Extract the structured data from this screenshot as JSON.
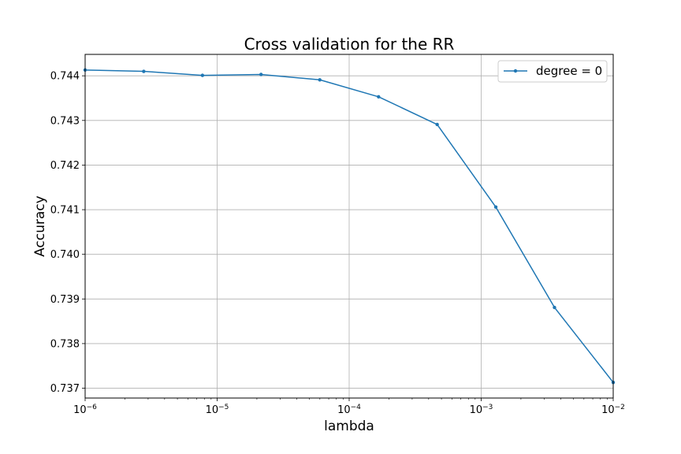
{
  "chart_data": {
    "type": "line",
    "title": "Cross validation for the RR",
    "xlabel": "lambda",
    "ylabel": "Accuracy",
    "xscale": "log",
    "xlim": [
      1e-06,
      0.01
    ],
    "ylim": [
      0.73678,
      0.74448
    ],
    "grid": true,
    "legend_position": "top-right",
    "x_ticks": [
      {
        "value": 1e-06,
        "base": "10",
        "exp": "−6"
      },
      {
        "value": 1e-05,
        "base": "10",
        "exp": "−5"
      },
      {
        "value": 0.0001,
        "base": "10",
        "exp": "−4"
      },
      {
        "value": 0.001,
        "base": "10",
        "exp": "−3"
      },
      {
        "value": 0.01,
        "base": "10",
        "exp": "−2"
      }
    ],
    "y_ticks": [
      {
        "value": 0.737,
        "label": "0.737"
      },
      {
        "value": 0.738,
        "label": "0.738"
      },
      {
        "value": 0.739,
        "label": "0.739"
      },
      {
        "value": 0.74,
        "label": "0.740"
      },
      {
        "value": 0.741,
        "label": "0.741"
      },
      {
        "value": 0.742,
        "label": "0.742"
      },
      {
        "value": 0.743,
        "label": "0.743"
      },
      {
        "value": 0.744,
        "label": "0.744"
      }
    ],
    "series": [
      {
        "name": "degree = 0",
        "color": "#1f77b4",
        "marker": "point",
        "x": [
          1e-06,
          2.78e-06,
          7.74e-06,
          2.15e-05,
          5.99e-05,
          0.000167,
          0.000464,
          0.00129,
          0.00359,
          0.01
        ],
        "y": [
          0.74413,
          0.7441,
          0.74401,
          0.74403,
          0.74391,
          0.74353,
          0.74291,
          0.74106,
          0.73881,
          0.73713
        ]
      }
    ]
  }
}
